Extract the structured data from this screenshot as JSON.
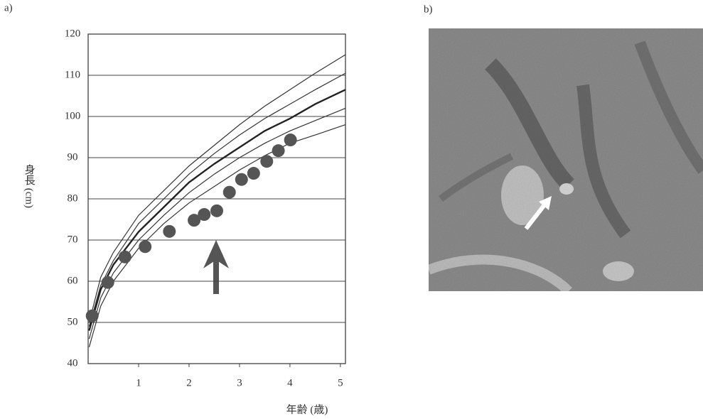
{
  "panels": [
    "a)",
    "b)"
  ],
  "chart_data": {
    "type": "scatter",
    "xlabel": "年齢 (歳)",
    "ylabel": "身長 (cm)",
    "x": [
      0.08,
      0.39,
      0.73,
      1.13,
      1.61,
      2.1,
      2.3,
      2.55,
      2.8,
      3.04,
      3.28,
      3.54,
      3.77,
      4.01
    ],
    "values": [
      51.6,
      59.7,
      65.9,
      68.4,
      72.1,
      74.8,
      76.2,
      77.1,
      81.6,
      84.7,
      86.2,
      89.1,
      91.7,
      94.3
    ],
    "color": "#555555",
    "curves": {
      "x": [
        0.02,
        0.25,
        0.5,
        1,
        1.5,
        2,
        2.5,
        3,
        3.5,
        4,
        4.5,
        5.1
      ],
      "series": [
        {
          "color": "#333333",
          "line_width": 1.2,
          "values": [
            50,
            61,
            67,
            76,
            82,
            88,
            93,
            98,
            102.5,
            106.5,
            110.5,
            115
          ]
        },
        {
          "color": "#333333",
          "line_width": 1.2,
          "values": [
            49,
            59,
            65,
            74,
            80,
            86,
            91,
            95.5,
            99.5,
            103,
            106.5,
            110.5
          ]
        },
        {
          "color": "#222222",
          "line_width": 2.4,
          "values": [
            48,
            58,
            64,
            72,
            78,
            84,
            88.5,
            92.5,
            96.5,
            99.5,
            103,
            106.5
          ]
        },
        {
          "color": "#333333",
          "line_width": 1.2,
          "values": [
            46,
            56,
            62,
            70,
            76,
            81.5,
            86,
            90,
            93.5,
            96.5,
            99,
            102
          ]
        },
        {
          "color": "#333333",
          "line_width": 1.2,
          "values": [
            44,
            54,
            60,
            68,
            74,
            79,
            83,
            87,
            90.5,
            93.5,
            95.5,
            98
          ]
        }
      ]
    },
    "xlim": [
      0,
      5.1
    ],
    "ylim": [
      40,
      120
    ],
    "xticks": [
      1,
      2,
      3,
      4,
      5
    ],
    "yticks": [
      40,
      50,
      60,
      70,
      80,
      90,
      100,
      110,
      120
    ],
    "grid": true
  }
}
